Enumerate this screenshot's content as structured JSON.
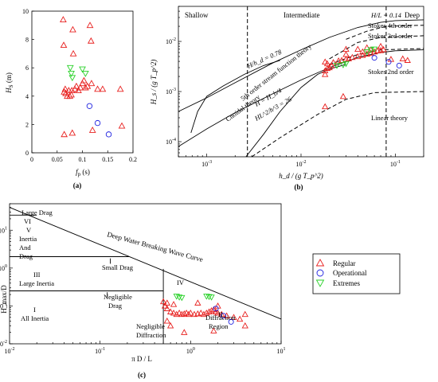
{
  "chart_data": [
    {
      "panel": "(a)",
      "type": "scatter",
      "xlabel": "f_p (s)",
      "ylabel": "H_S (m)",
      "xlim": [
        0,
        0.2
      ],
      "ylim": [
        0,
        10
      ],
      "xticks": [
        "0",
        "0.05",
        "0.1",
        "0.15",
        "0.2"
      ],
      "yticks": [
        "0",
        "2",
        "4",
        "6",
        "8",
        "10"
      ],
      "series": [
        {
          "name": "Regular",
          "marker": "triangle-up",
          "color": "#e8201f",
          "points": [
            [
              0.062,
              9.4
            ],
            [
              0.063,
              7.6
            ],
            [
              0.064,
              4.3
            ],
            [
              0.066,
              4.5
            ],
            [
              0.067,
              4.2
            ],
            [
              0.064,
              1.3
            ],
            [
              0.07,
              4.0
            ],
            [
              0.073,
              4.4
            ],
            [
              0.075,
              4.0
            ],
            [
              0.078,
              4.1
            ],
            [
              0.079,
              4.4
            ],
            [
              0.081,
              8.7
            ],
            [
              0.082,
              7.0
            ],
            [
              0.085,
              4.5
            ],
            [
              0.088,
              4.7
            ],
            [
              0.092,
              4.4
            ],
            [
              0.096,
              4.6
            ],
            [
              0.1,
              4.9
            ],
            [
              0.103,
              5.1
            ],
            [
              0.106,
              4.6
            ],
            [
              0.115,
              9.0
            ],
            [
              0.117,
              7.9
            ],
            [
              0.118,
              4.9
            ],
            [
              0.11,
              4.7
            ],
            [
              0.13,
              4.5
            ],
            [
              0.14,
              4.5
            ],
            [
              0.175,
              4.5
            ],
            [
              0.12,
              1.6
            ],
            [
              0.178,
              1.9
            ],
            [
              0.08,
              1.4
            ]
          ]
        },
        {
          "name": "Operational",
          "marker": "circle",
          "color": "#1f22e0",
          "points": [
            [
              0.114,
              3.3
            ],
            [
              0.13,
              2.1
            ],
            [
              0.152,
              1.3
            ]
          ]
        },
        {
          "name": "Extremes",
          "marker": "triangle-down",
          "color": "#28d128",
          "points": [
            [
              0.076,
              6.0
            ],
            [
              0.078,
              5.6
            ],
            [
              0.08,
              5.3
            ],
            [
              0.1,
              5.9
            ],
            [
              0.106,
              5.6
            ]
          ]
        }
      ]
    },
    {
      "panel": "(b)",
      "type": "scatter",
      "xlabel": "h_d / (g T_p^2)",
      "ylabel": "H_s / (g T_p^2)",
      "xscale": "log",
      "yscale": "log",
      "xlim": [
        0.0005,
        0.2
      ],
      "ylim": [
        5e-05,
        0.05
      ],
      "xticks": [
        "10^-3",
        "10^-2",
        "10^-1"
      ],
      "yticks": [
        "10^-4",
        "10^-3",
        "10^-2"
      ],
      "regions": [
        "Shallow",
        "Intermediate",
        "Deep"
      ],
      "annotations": [
        "H/L = 0.14",
        "Stokes 4th order",
        "Stokes 3rd order",
        "Stokes 2nd order",
        "Linear theory",
        "Cnoidal theory",
        "5th order stream function theory",
        "H/h_d = 0.78",
        "H = H_b/4",
        "HL^2/h^3 = 26"
      ],
      "series": [
        {
          "name": "Regular",
          "marker": "triangle-up",
          "color": "#e8201f",
          "points": [
            [
              0.018,
              0.0005
            ],
            [
              0.018,
              0.0022
            ],
            [
              0.018,
              0.0026
            ],
            [
              0.019,
              0.0029
            ],
            [
              0.02,
              0.003
            ],
            [
              0.018,
              0.0039
            ],
            [
              0.019,
              0.0036
            ],
            [
              0.021,
              0.0033
            ],
            [
              0.022,
              0.0038
            ],
            [
              0.025,
              0.0041
            ],
            [
              0.027,
              0.0042
            ],
            [
              0.03,
              0.0044
            ],
            [
              0.032,
              0.0045
            ],
            [
              0.035,
              0.0048
            ],
            [
              0.04,
              0.005
            ],
            [
              0.045,
              0.0053
            ],
            [
              0.05,
              0.0056
            ],
            [
              0.055,
              0.0058
            ],
            [
              0.06,
              0.0062
            ],
            [
              0.065,
              0.0065
            ],
            [
              0.07,
              0.0066
            ],
            [
              0.075,
              0.0069
            ],
            [
              0.028,
              0.0008
            ],
            [
              0.03,
              0.0055
            ],
            [
              0.045,
              0.0062
            ],
            [
              0.055,
              0.0068
            ],
            [
              0.09,
              0.0044
            ],
            [
              0.12,
              0.0045
            ],
            [
              0.135,
              0.0042
            ],
            [
              0.03,
              0.007
            ],
            [
              0.04,
              0.007
            ],
            [
              0.05,
              0.0075
            ],
            [
              0.07,
              0.008
            ]
          ]
        },
        {
          "name": "Operational",
          "marker": "circle",
          "color": "#1f22e0",
          "points": [
            [
              0.06,
              0.0047
            ],
            [
              0.085,
              0.0039
            ],
            [
              0.11,
              0.0033
            ]
          ]
        },
        {
          "name": "Extremes",
          "marker": "triangle-down",
          "color": "#28d128",
          "points": [
            [
              0.024,
              0.0033
            ],
            [
              0.028,
              0.0034
            ],
            [
              0.03,
              0.0036
            ],
            [
              0.05,
              0.0062
            ],
            [
              0.055,
              0.0068
            ],
            [
              0.06,
              0.007
            ]
          ]
        }
      ]
    },
    {
      "panel": "(c)",
      "type": "scatter",
      "xlabel": "π D / L",
      "ylabel": "H_max/D",
      "xscale": "log",
      "yscale": "log",
      "xlim": [
        0.01,
        10
      ],
      "ylim": [
        0.01,
        50
      ],
      "xticks": [
        "10^-2",
        "10^-1",
        "10^0",
        "10^1"
      ],
      "yticks": [
        "10^-2",
        "10^-1",
        "10^0",
        "10^1"
      ],
      "regions": [
        "Large Drag",
        "VI",
        "V",
        "Inertia",
        "And",
        "Drag",
        "Small Drag",
        "III",
        "Large Inertia",
        "Negligible",
        "Drag",
        "I",
        "All Inertia",
        "IV",
        "II",
        "Negligible",
        "Diffraction",
        "Diffraction",
        "Region"
      ],
      "curve_label": "Deep Water Breaking Wave Curve",
      "legend": {
        "position": "right",
        "entries": [
          "Regular",
          "Operational",
          "Extremes"
        ]
      },
      "series": [
        {
          "name": "Regular",
          "marker": "triangle-up",
          "color": "#e8201f",
          "points": [
            [
              0.5,
              0.13
            ],
            [
              0.52,
              0.1
            ],
            [
              0.55,
              0.085
            ],
            [
              0.6,
              0.07
            ],
            [
              0.65,
              0.065
            ],
            [
              0.7,
              0.06
            ],
            [
              0.75,
              0.065
            ],
            [
              0.8,
              0.06
            ],
            [
              0.85,
              0.062
            ],
            [
              0.9,
              0.065
            ],
            [
              0.95,
              0.06
            ],
            [
              1.0,
              0.065
            ],
            [
              1.1,
              0.06
            ],
            [
              1.2,
              0.062
            ],
            [
              1.3,
              0.065
            ],
            [
              1.4,
              0.06
            ],
            [
              1.5,
              0.065
            ],
            [
              1.6,
              0.07
            ],
            [
              1.7,
              0.075
            ],
            [
              1.8,
              0.08
            ],
            [
              1.9,
              0.07
            ],
            [
              2.0,
              0.065
            ],
            [
              2.2,
              0.06
            ],
            [
              2.5,
              0.055
            ],
            [
              3.0,
              0.05
            ],
            [
              3.5,
              0.045
            ],
            [
              4.0,
              0.06
            ],
            [
              1.8,
              0.022
            ],
            [
              0.55,
              0.04
            ],
            [
              0.6,
              0.03
            ],
            [
              0.85,
              0.02
            ],
            [
              0.55,
              0.12
            ],
            [
              0.65,
              0.11
            ],
            [
              1.2,
              0.12
            ],
            [
              2.0,
              0.1
            ],
            [
              4.0,
              0.03
            ]
          ]
        },
        {
          "name": "Operational",
          "marker": "circle",
          "color": "#1f22e0",
          "points": [
            [
              1.9,
              0.085
            ],
            [
              2.3,
              0.055
            ],
            [
              2.8,
              0.038
            ]
          ]
        },
        {
          "name": "Extremes",
          "marker": "triangle-down",
          "color": "#28d128",
          "points": [
            [
              0.7,
              0.18
            ],
            [
              0.75,
              0.17
            ],
            [
              0.8,
              0.165
            ],
            [
              1.5,
              0.18
            ],
            [
              1.6,
              0.175
            ],
            [
              1.7,
              0.17
            ]
          ]
        }
      ]
    }
  ],
  "text": {
    "a_panel": "(a)",
    "b_panel": "(b)",
    "c_panel": "(c)",
    "a_ylabel_main": "H",
    "a_ylabel_sub": "S",
    "a_ylabel_unit": " (m)",
    "a_xlabel_main": "f",
    "a_xlabel_sub": "p",
    "a_xlabel_unit": " (s)",
    "b_xlabel": "h_d / (g T_p^2)",
    "b_ylabel": "H_s / (g T_p^2)",
    "b_shallow": "Shallow",
    "b_intermediate": "Intermediate",
    "b_deep": "Deep",
    "b_hl": "H/L = 0.14",
    "b_stokes4": "Stokes 4th order",
    "b_stokes3": "Stokes 3rd order",
    "b_stokes2": "Stokes 2nd order",
    "b_linear": "Linear theory",
    "b_cnoidal": "Cnoidal theory",
    "b_stream": "5th order stream function theory",
    "b_hhd": "H/h_d = 0.78",
    "b_hb4": "H = H_b/4",
    "b_hl2": "HL^2/h^3 = 26",
    "c_ylabel": "H_max/D",
    "c_xlabel": "π D / L",
    "c_large_drag": "Large Drag",
    "c_vi": "VI",
    "c_v": "V",
    "c_inertia": "Inertia",
    "c_and": "And",
    "c_drag1": "Drag",
    "c_small_drag": "Small Drag",
    "c_iii": "III",
    "c_large_inertia": "Large Inertia",
    "c_negl_drag": "Negligible",
    "c_drag2": "Drag",
    "c_i": "I",
    "c_all_inertia": "All Inertia",
    "c_iv": "IV",
    "c_ii": "II",
    "c_negl_diff1": "Negligible",
    "c_negl_diff2": "Diffraction",
    "c_diff_region1": "Diffraction",
    "c_diff_region2": "Region",
    "c_curve_label": "Deep Water Breaking Wave Curve",
    "legend_regular": "Regular",
    "legend_operational": "Operational",
    "legend_extremes": "Extremes"
  }
}
